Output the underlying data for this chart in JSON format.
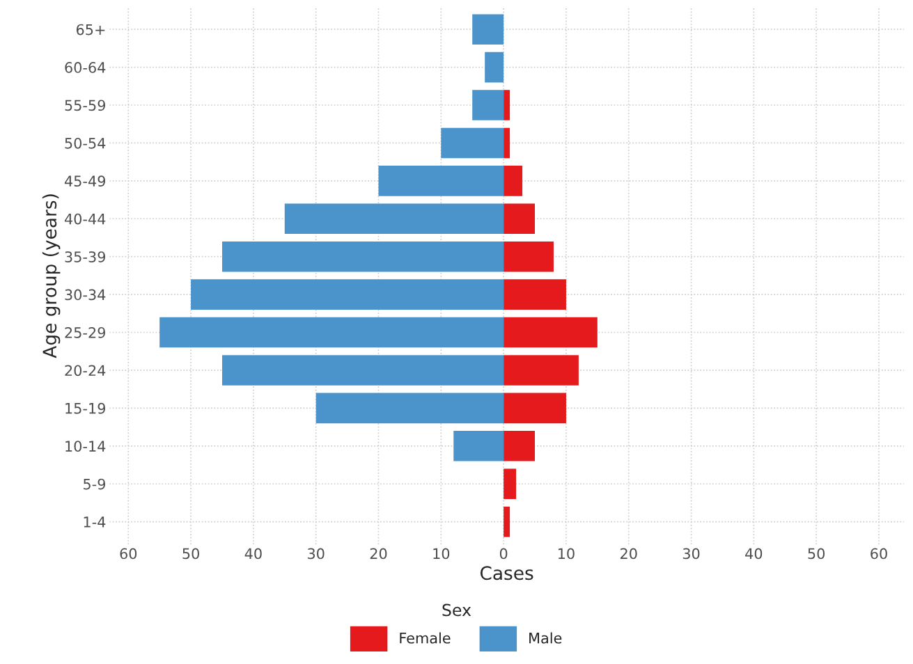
{
  "chart_data": {
    "type": "bar",
    "orientation": "horizontal",
    "stacked": true,
    "xlabel": "Cases",
    "ylabel": "Age group (years)",
    "legend_title": "Sex",
    "legend": "bottom",
    "grid": true,
    "line_style": "dotted",
    "categories": [
      "65+",
      "60-64",
      "55-59",
      "50-54",
      "45-49",
      "40-44",
      "35-39",
      "30-34",
      "25-29",
      "20-24",
      "15-19",
      "10-14",
      "5-9",
      "1-4"
    ],
    "series": [
      {
        "name": "Female",
        "color": "#e41a1c",
        "values": [
          null,
          null,
          1,
          1,
          3,
          5,
          8,
          10,
          15,
          12,
          10,
          5,
          2,
          1
        ]
      },
      {
        "name": "Male",
        "color": "#4b93cb",
        "values": [
          -5,
          -3,
          -5,
          -10,
          -20,
          -35,
          -45,
          -50,
          -55,
          -45,
          -30,
          -8,
          null,
          null
        ]
      }
    ],
    "xlim": [
      -63,
      64
    ],
    "xticks": [
      {
        "value": -60,
        "label": "60"
      },
      {
        "value": -50,
        "label": "50"
      },
      {
        "value": -40,
        "label": "40"
      },
      {
        "value": -30,
        "label": "30"
      },
      {
        "value": -20,
        "label": "20"
      },
      {
        "value": -10,
        "label": "10"
      },
      0,
      10,
      20,
      30,
      40,
      50,
      60
    ]
  }
}
